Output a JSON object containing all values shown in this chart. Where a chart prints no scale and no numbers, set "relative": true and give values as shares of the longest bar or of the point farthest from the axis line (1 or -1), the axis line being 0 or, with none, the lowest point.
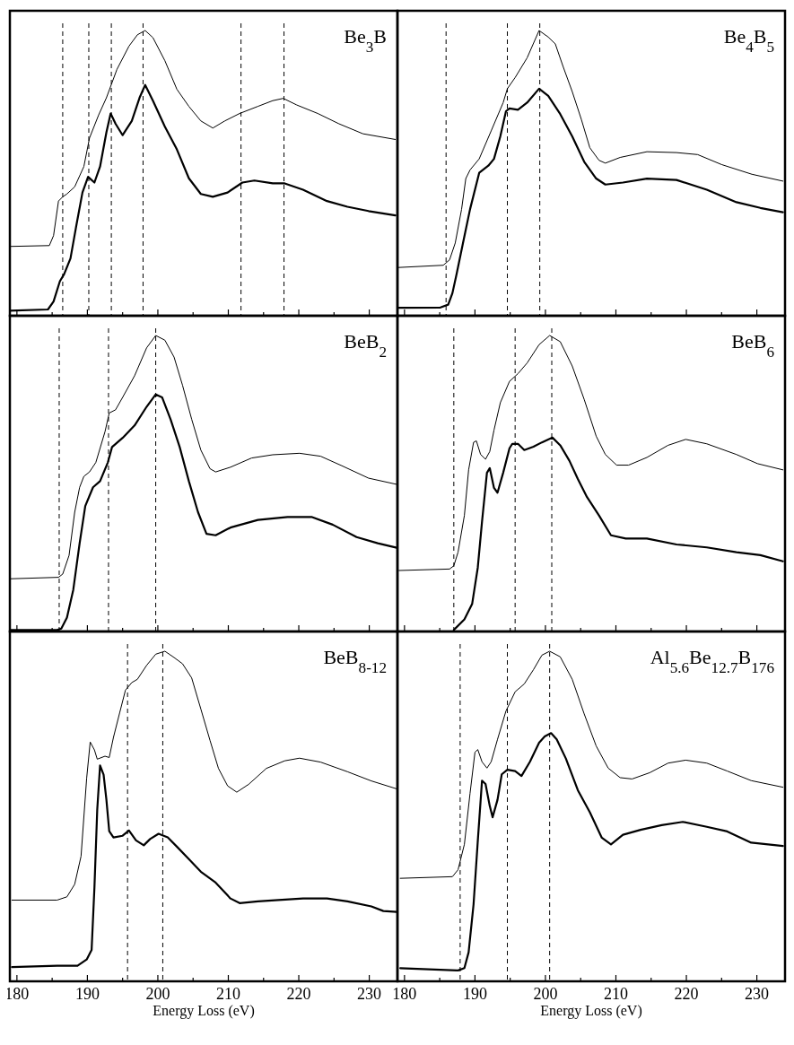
{
  "chart_data": [
    {
      "type": "line",
      "title": "Be$_{3}$B",
      "relative": true,
      "xlim": [
        179,
        234
      ],
      "xticks": [
        180,
        {
          "value": 185,
          "label": null
        },
        190,
        {
          "value": 195,
          "label": null
        },
        200,
        {
          "value": 205,
          "label": null
        },
        210,
        {
          "value": 215,
          "label": null
        },
        220,
        {
          "value": 225,
          "label": null
        },
        230
      ],
      "tick_labels": false,
      "line_style": "solid",
      "series": [
        {
          "color": "#000000",
          "x": [
            179.0,
            184.6,
            185.2,
            185.9,
            186.5,
            187.1,
            188.2,
            189.5,
            190.3,
            191.6,
            192.7,
            194.2,
            195.9,
            197.1,
            198.2,
            199.3,
            201.0,
            202.7,
            204.4,
            206.1,
            207.8,
            209.5,
            211.6,
            214.2,
            216.3,
            217.8,
            219.7,
            222.7,
            225.7,
            229.1,
            233.7
          ],
          "values": [
            0.243,
            0.246,
            0.281,
            0.402,
            0.417,
            0.427,
            0.452,
            0.523,
            0.623,
            0.704,
            0.764,
            0.864,
            0.945,
            0.985,
            1,
            0.975,
            0.894,
            0.794,
            0.734,
            0.683,
            0.658,
            0.683,
            0.709,
            0.734,
            0.754,
            0.762,
            0.739,
            0.709,
            0.673,
            0.638,
            0.618
          ]
        },
        {
          "color": "#000000",
          "x": [
            179.0,
            184.4,
            185.2,
            186.1,
            186.7,
            187.6,
            188.4,
            189.3,
            190.1,
            191.0,
            191.8,
            192.7,
            193.3,
            194.0,
            195.0,
            196.3,
            197.4,
            198.2,
            199.3,
            201.0,
            202.7,
            204.4,
            206.1,
            207.8,
            209.9,
            212.0,
            213.7,
            216.3,
            218.0,
            220.6,
            224.0,
            226.9,
            229.9,
            233.7
          ],
          "values": [
            0.018,
            0.022,
            0.05,
            0.121,
            0.146,
            0.201,
            0.312,
            0.432,
            0.487,
            0.467,
            0.523,
            0.643,
            0.709,
            0.673,
            0.633,
            0.683,
            0.764,
            0.809,
            0.754,
            0.663,
            0.583,
            0.482,
            0.427,
            0.417,
            0.432,
            0.467,
            0.474,
            0.464,
            0.464,
            0.442,
            0.402,
            0.382,
            0.367,
            0.352
          ]
        }
      ],
      "ref_lines": [
        {
          "axis": "x",
          "value": 186.5,
          "line_style": "dashed"
        },
        {
          "axis": "x",
          "value": 190.2,
          "line_style": "dashed"
        },
        {
          "axis": "x",
          "value": 193.4,
          "line_style": "dashed"
        },
        {
          "axis": "x",
          "value": 197.9,
          "line_style": "dashed"
        },
        {
          "axis": "x",
          "value": 211.8,
          "line_style": "dashed"
        },
        {
          "axis": "x",
          "value": 217.9,
          "line_style": "dashed"
        }
      ]
    },
    {
      "type": "line",
      "title": "Be$_{4}$B$_{5}$",
      "relative": true,
      "xlim": [
        179,
        234
      ],
      "xticks": [
        180,
        {
          "value": 185,
          "label": null
        },
        190,
        {
          "value": 195,
          "label": null
        },
        200,
        {
          "value": 205,
          "label": null
        },
        210,
        {
          "value": 215,
          "label": null
        },
        220,
        {
          "value": 225,
          "label": null
        },
        230
      ],
      "tick_labels": false,
      "line_style": "solid",
      "series": [
        {
          "color": "#000000",
          "x": [
            179.0,
            185.5,
            186.4,
            187.2,
            188.1,
            188.7,
            189.3,
            190.6,
            192.3,
            194.0,
            194.6,
            195.7,
            197.4,
            199.1,
            200.4,
            201.4,
            202.5,
            203.8,
            205.1,
            206.3,
            207.6,
            208.5,
            210.6,
            214.4,
            218.6,
            221.6,
            225.0,
            229.3,
            233.7
          ],
          "values": [
            0.169,
            0.177,
            0.196,
            0.255,
            0.373,
            0.481,
            0.511,
            0.55,
            0.648,
            0.747,
            0.796,
            0.835,
            0.904,
            1,
            0.977,
            0.953,
            0.874,
            0.786,
            0.688,
            0.589,
            0.545,
            0.535,
            0.555,
            0.575,
            0.572,
            0.565,
            0.53,
            0.496,
            0.472
          ]
        },
        {
          "color": "#000000",
          "x": [
            179.0,
            185.1,
            186.2,
            186.8,
            187.4,
            188.3,
            189.3,
            190.6,
            191.9,
            192.7,
            193.6,
            194.4,
            194.9,
            196.1,
            197.4,
            199.1,
            200.4,
            202.1,
            203.8,
            205.5,
            207.2,
            208.5,
            211.0,
            214.4,
            218.6,
            222.9,
            227.1,
            230.5,
            233.7
          ],
          "values": [
            0.028,
            0.029,
            0.039,
            0.079,
            0.147,
            0.255,
            0.373,
            0.501,
            0.526,
            0.55,
            0.629,
            0.717,
            0.727,
            0.722,
            0.747,
            0.796,
            0.771,
            0.707,
            0.629,
            0.54,
            0.481,
            0.46,
            0.467,
            0.481,
            0.476,
            0.442,
            0.398,
            0.378,
            0.363
          ]
        }
      ],
      "ref_lines": [
        {
          "axis": "x",
          "value": 185.9,
          "line_style": "dashed"
        },
        {
          "axis": "x",
          "value": 194.6,
          "line_style": "dashed"
        },
        {
          "axis": "x",
          "value": 199.2,
          "line_style": "dashed"
        }
      ]
    },
    {
      "type": "line",
      "title": "BeB$_{2}$",
      "relative": true,
      "xlim": [
        179,
        234
      ],
      "xticks": [
        180,
        {
          "value": 185,
          "label": null
        },
        190,
        {
          "value": 195,
          "label": null
        },
        200,
        {
          "value": 205,
          "label": null
        },
        210,
        {
          "value": 215,
          "label": null
        },
        220,
        {
          "value": 225,
          "label": null
        },
        230
      ],
      "tick_labels": false,
      "line_style": "solid",
      "series": [
        {
          "color": "#000000",
          "x": [
            179.0,
            185.9,
            186.5,
            187.4,
            188.2,
            188.9,
            189.5,
            190.3,
            191.2,
            192.5,
            193.1,
            194.0,
            195.0,
            196.7,
            198.4,
            199.7,
            201.0,
            202.3,
            203.5,
            204.8,
            206.1,
            207.4,
            208.2,
            210.3,
            213.3,
            216.3,
            220.1,
            223.1,
            226.1,
            229.9,
            233.9
          ],
          "values": [
            0.178,
            0.183,
            0.194,
            0.257,
            0.403,
            0.487,
            0.524,
            0.539,
            0.571,
            0.675,
            0.738,
            0.749,
            0.791,
            0.864,
            0.958,
            1,
            0.984,
            0.927,
            0.832,
            0.717,
            0.613,
            0.55,
            0.539,
            0.555,
            0.586,
            0.597,
            0.602,
            0.592,
            0.56,
            0.518,
            0.497
          ]
        },
        {
          "color": "#000000",
          "x": [
            179.0,
            185.7,
            186.3,
            187.1,
            188.0,
            188.9,
            189.7,
            190.8,
            191.8,
            192.9,
            193.5,
            195.0,
            196.7,
            198.4,
            199.7,
            200.6,
            201.8,
            203.1,
            204.4,
            205.7,
            206.9,
            208.2,
            210.3,
            214.2,
            218.4,
            221.8,
            224.8,
            228.2,
            231.2,
            233.9
          ],
          "values": [
            0.005,
            0.005,
            0.01,
            0.047,
            0.141,
            0.298,
            0.424,
            0.487,
            0.508,
            0.571,
            0.623,
            0.654,
            0.696,
            0.759,
            0.801,
            0.791,
            0.717,
            0.623,
            0.508,
            0.403,
            0.33,
            0.325,
            0.351,
            0.377,
            0.387,
            0.387,
            0.361,
            0.319,
            0.298,
            0.283
          ]
        }
      ],
      "ref_lines": [
        {
          "axis": "x",
          "value": 186.0,
          "line_style": "dashed"
        },
        {
          "axis": "x",
          "value": 193.0,
          "line_style": "dashed"
        },
        {
          "axis": "x",
          "value": 199.7,
          "line_style": "dashed"
        }
      ]
    },
    {
      "type": "line",
      "title": "BeB$_{6}$",
      "relative": true,
      "xlim": [
        179,
        234
      ],
      "xticks": [
        180,
        {
          "value": 185,
          "label": null
        },
        190,
        {
          "value": 195,
          "label": null
        },
        200,
        {
          "value": 205,
          "label": null
        },
        210,
        {
          "value": 215,
          "label": null
        },
        220,
        {
          "value": 225,
          "label": null
        },
        230
      ],
      "tick_labels": false,
      "line_style": "solid",
      "series": [
        {
          "color": "#000000",
          "x": [
            179.2,
            186.4,
            187.0,
            187.6,
            188.5,
            189.1,
            189.8,
            190.2,
            190.8,
            191.5,
            192.1,
            192.7,
            193.6,
            194.9,
            196.1,
            197.4,
            199.1,
            200.6,
            202.1,
            203.8,
            205.5,
            207.2,
            208.5,
            210.1,
            211.8,
            214.4,
            217.4,
            219.9,
            222.9,
            227.1,
            230.1,
            233.7
          ],
          "values": [
            0.206,
            0.211,
            0.222,
            0.268,
            0.392,
            0.546,
            0.639,
            0.644,
            0.598,
            0.582,
            0.608,
            0.68,
            0.773,
            0.845,
            0.871,
            0.907,
            0.969,
            1,
            0.979,
            0.897,
            0.784,
            0.66,
            0.598,
            0.562,
            0.562,
            0.588,
            0.629,
            0.649,
            0.634,
            0.598,
            0.567,
            0.546
          ]
        },
        {
          "color": "#000000",
          "x": [
            187.0,
            188.5,
            189.6,
            190.4,
            191.0,
            191.7,
            192.1,
            192.7,
            193.2,
            194.0,
            194.9,
            195.3,
            196.1,
            197.0,
            198.3,
            199.5,
            201.0,
            202.1,
            203.4,
            204.6,
            205.9,
            207.6,
            209.3,
            211.4,
            214.4,
            218.6,
            222.9,
            227.1,
            230.5,
            233.7
          ],
          "values": [
            0.005,
            0.041,
            0.093,
            0.216,
            0.371,
            0.536,
            0.552,
            0.485,
            0.469,
            0.536,
            0.619,
            0.634,
            0.634,
            0.613,
            0.624,
            0.639,
            0.655,
            0.629,
            0.577,
            0.515,
            0.454,
            0.392,
            0.325,
            0.314,
            0.314,
            0.294,
            0.284,
            0.268,
            0.258,
            0.237
          ]
        }
      ],
      "ref_lines": [
        {
          "axis": "x",
          "value": 187.0,
          "line_style": "dashed"
        },
        {
          "axis": "x",
          "value": 195.7,
          "line_style": "dashed"
        },
        {
          "axis": "x",
          "value": 200.9,
          "line_style": "dashed"
        }
      ]
    },
    {
      "type": "line",
      "title": "BeB$_{8-12}$",
      "xlabel": "Energy Loss (eV)",
      "relative": true,
      "xlim": [
        179,
        234
      ],
      "xticks": [
        180,
        {
          "value": 185,
          "label": null
        },
        190,
        {
          "value": 195,
          "label": null
        },
        200,
        {
          "value": 205,
          "label": null
        },
        210,
        {
          "value": 215,
          "label": null
        },
        220,
        {
          "value": 225,
          "label": null
        },
        230
      ],
      "tick_labels": "x",
      "line_style": "solid",
      "series": [
        {
          "color": "#000000",
          "x": [
            179.3,
            185.7,
            187.1,
            188.2,
            189.1,
            189.9,
            190.4,
            191.0,
            191.4,
            192.5,
            193.1,
            193.7,
            194.6,
            195.4,
            196.3,
            197.1,
            198.4,
            199.7,
            201.0,
            202.3,
            203.5,
            204.8,
            206.1,
            207.4,
            208.6,
            209.9,
            211.2,
            212.9,
            215.4,
            218.0,
            220.1,
            223.1,
            226.9,
            230.3,
            233.9
          ],
          "values": [
            0.246,
            0.246,
            0.256,
            0.294,
            0.379,
            0.616,
            0.725,
            0.701,
            0.673,
            0.682,
            0.678,
            0.739,
            0.815,
            0.882,
            0.905,
            0.915,
            0.957,
            0.991,
            1,
            0.981,
            0.962,
            0.919,
            0.825,
            0.73,
            0.645,
            0.592,
            0.573,
            0.597,
            0.645,
            0.668,
            0.676,
            0.664,
            0.635,
            0.607,
            0.583
          ]
        },
        {
          "color": "#000000",
          "x": [
            179.3,
            185.7,
            188.6,
            189.9,
            190.6,
            191.0,
            191.4,
            191.8,
            192.3,
            192.7,
            193.1,
            193.7,
            195.0,
            195.9,
            196.9,
            198.0,
            198.9,
            200.1,
            201.4,
            202.7,
            204.4,
            206.1,
            208.2,
            210.3,
            211.6,
            214.2,
            217.1,
            220.6,
            224.0,
            226.9,
            230.3,
            232.0,
            233.9
          ],
          "values": [
            0.043,
            0.047,
            0.047,
            0.066,
            0.095,
            0.284,
            0.521,
            0.654,
            0.626,
            0.55,
            0.455,
            0.436,
            0.441,
            0.457,
            0.427,
            0.412,
            0.431,
            0.447,
            0.436,
            0.408,
            0.37,
            0.332,
            0.299,
            0.251,
            0.237,
            0.242,
            0.246,
            0.251,
            0.251,
            0.242,
            0.227,
            0.213,
            0.21
          ]
        }
      ],
      "ref_lines": [
        {
          "axis": "x",
          "value": 195.7,
          "line_style": "dashed"
        },
        {
          "axis": "x",
          "value": 200.7,
          "line_style": "dashed"
        }
      ]
    },
    {
      "type": "line",
      "title": "Al$_{5.6}$Be$_{12.7}$B$_{176}$",
      "xlabel": "Energy Loss (eV)",
      "relative": true,
      "xlim": [
        179,
        234
      ],
      "xticks": [
        180,
        {
          "value": 185,
          "label": null
        },
        190,
        {
          "value": 195,
          "label": null
        },
        200,
        {
          "value": 205,
          "label": null
        },
        210,
        {
          "value": 215,
          "label": null
        },
        220,
        {
          "value": 225,
          "label": null
        },
        230
      ],
      "tick_labels": "x",
      "line_style": "solid",
      "series": [
        {
          "color": "#000000",
          "x": [
            179.4,
            186.8,
            187.6,
            188.5,
            189.3,
            190.0,
            190.4,
            191.0,
            191.7,
            192.3,
            193.2,
            194.4,
            195.7,
            197.0,
            198.3,
            199.5,
            200.6,
            202.1,
            203.8,
            205.5,
            207.2,
            208.9,
            210.6,
            212.3,
            214.8,
            217.4,
            219.9,
            222.9,
            225.8,
            229.2,
            233.7
          ],
          "values": [
            0.312,
            0.317,
            0.338,
            0.415,
            0.569,
            0.694,
            0.702,
            0.665,
            0.646,
            0.665,
            0.733,
            0.819,
            0.877,
            0.901,
            0.944,
            0.988,
            1,
            0.983,
            0.915,
            0.81,
            0.713,
            0.646,
            0.617,
            0.613,
            0.632,
            0.661,
            0.67,
            0.661,
            0.637,
            0.608,
            0.588
          ]
        },
        {
          "color": "#000000",
          "x": [
            179.4,
            187.6,
            188.5,
            189.1,
            189.8,
            190.4,
            191.0,
            191.5,
            192.1,
            192.5,
            193.2,
            193.8,
            194.6,
            195.7,
            196.6,
            197.8,
            199.1,
            199.9,
            200.8,
            201.6,
            202.9,
            204.6,
            206.3,
            208.0,
            209.3,
            211.0,
            213.5,
            216.5,
            219.5,
            222.9,
            225.8,
            229.2,
            233.7
          ],
          "values": [
            0.04,
            0.033,
            0.04,
            0.088,
            0.233,
            0.425,
            0.608,
            0.598,
            0.531,
            0.497,
            0.55,
            0.627,
            0.641,
            0.637,
            0.622,
            0.665,
            0.723,
            0.742,
            0.752,
            0.733,
            0.675,
            0.579,
            0.512,
            0.435,
            0.415,
            0.444,
            0.459,
            0.473,
            0.483,
            0.468,
            0.454,
            0.42,
            0.41
          ]
        }
      ],
      "ref_lines": [
        {
          "axis": "x",
          "value": 187.9,
          "line_style": "dashed"
        },
        {
          "axis": "x",
          "value": 194.6,
          "line_style": "dashed"
        },
        {
          "axis": "x",
          "value": 200.6,
          "line_style": "dashed"
        }
      ]
    }
  ]
}
